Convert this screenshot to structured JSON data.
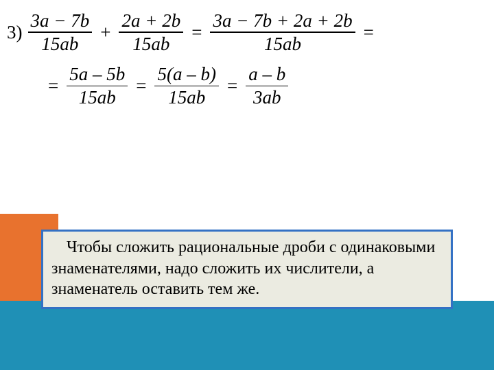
{
  "colors": {
    "orange": "#e8722e",
    "blue": "#1f90b6",
    "box_bg": "#ebebe1",
    "box_border": "#3471c4"
  },
  "math": {
    "item_number": "3)",
    "line1": {
      "f1": {
        "num": "3a − 7b",
        "den": "15ab"
      },
      "op1": "+",
      "f2": {
        "num": "2a + 2b",
        "den": "15ab"
      },
      "eq1": "=",
      "f3": {
        "num": "3a − 7b + 2a + 2b",
        "den": "15ab"
      },
      "eq2": "="
    },
    "line2": {
      "eq1": "=",
      "f1": {
        "num": "5a – 5b",
        "den": "15ab"
      },
      "eq2": "=",
      "f2": {
        "num": "5(a – b)",
        "den": "15ab"
      },
      "eq3": "=",
      "f3": {
        "num": "a – b",
        "den": "3ab"
      }
    }
  },
  "rule_text": "Чтобы сложить рациональные дроби с одинаковыми знаменателями, надо сложить их числители, а знаменатель оставить тем же."
}
